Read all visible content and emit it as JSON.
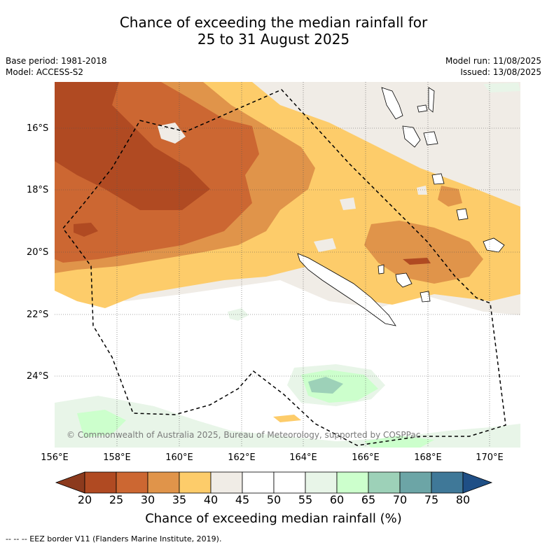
{
  "title": {
    "line1": "Chance of exceeding the median rainfall for",
    "line2": "25 to 31 August 2025"
  },
  "meta_left": {
    "base_period": "Base period: 1981-2018",
    "model": "Model: ACCESS-S2"
  },
  "meta_right": {
    "model_run": "Model run: 11/08/2025",
    "issued": "Issued: 13/08/2025"
  },
  "map": {
    "lat_labels": [
      "16°S",
      "18°S",
      "20°S",
      "22°S",
      "24°S"
    ],
    "lon_labels": [
      "156°E",
      "158°E",
      "160°E",
      "162°E",
      "164°E",
      "166°E",
      "168°E",
      "170°E"
    ],
    "copyright": "© Commonwealth of Australia 2025, Bureau of Meteorology, supported by COSPPac"
  },
  "colorbar": {
    "ticks": [
      "20",
      "25",
      "30",
      "35",
      "40",
      "45",
      "50",
      "55",
      "60",
      "65",
      "70",
      "75",
      "80"
    ],
    "colors": [
      "#8c3a1d",
      "#b04a22",
      "#cc6732",
      "#e0944a",
      "#fdcc6a",
      "#f0ece6",
      "#ffffff",
      "#ffffff",
      "#e8f5e8",
      "#ccffcc",
      "#9dd1b8",
      "#6ca5a6",
      "#3f7898",
      "#1f4f86"
    ],
    "label": "Chance of exceeding median rainfall (%)"
  },
  "legend_note": "--  --  -- EEZ border V11 (Flanders Marine Institute, 2019)."
}
